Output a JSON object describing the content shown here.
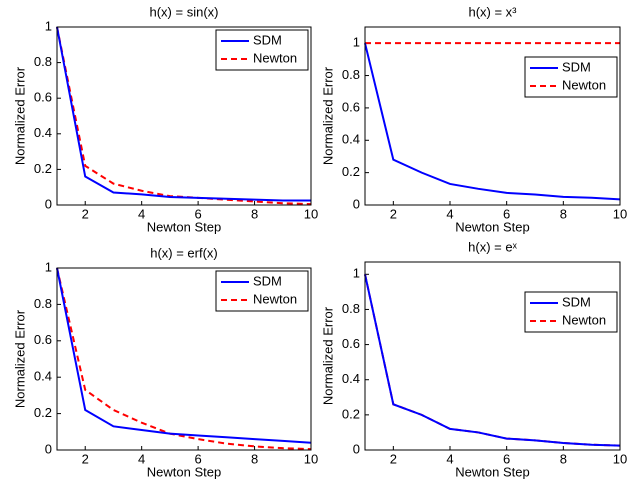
{
  "chart_data": [
    {
      "type": "line",
      "title": "h(x) = sin(x)",
      "x_label": "Newton Step",
      "y_label": "Normalized Error",
      "x": [
        1,
        2,
        3,
        4,
        5,
        6,
        7,
        8,
        9,
        10
      ],
      "xlim": [
        1,
        10
      ],
      "xticks": [
        2,
        4,
        6,
        8,
        10
      ],
      "ylim": [
        0,
        1
      ],
      "yticks": [
        0,
        0.2,
        0.4,
        0.6,
        0.8,
        1
      ],
      "legend": "upper right",
      "series": [
        {
          "name": "SDM",
          "color": "#0000ff",
          "linestyle": "solid",
          "values": [
            1,
            0.16,
            0.07,
            0.06,
            0.045,
            0.04,
            0.035,
            0.03,
            0.025,
            0.025
          ]
        },
        {
          "name": "Newton",
          "color": "#ff0000",
          "linestyle": "dashed",
          "values": [
            1,
            0.22,
            0.12,
            0.08,
            0.05,
            0.04,
            0.03,
            0.02,
            0.01,
            0.005
          ]
        }
      ]
    },
    {
      "type": "line",
      "title": "h(x) = x³",
      "x_label": "Newton Step",
      "y_label": "Normalized Error",
      "x": [
        1,
        2,
        3,
        4,
        5,
        6,
        7,
        8,
        9,
        10
      ],
      "xlim": [
        1,
        10
      ],
      "xticks": [
        2,
        4,
        6,
        8,
        10
      ],
      "ylim": [
        0,
        1.1
      ],
      "yticks": [
        0,
        0.2,
        0.4,
        0.6,
        0.8,
        1
      ],
      "legend": "upper right",
      "series": [
        {
          "name": "SDM",
          "color": "#0000ff",
          "linestyle": "solid",
          "values": [
            1,
            0.28,
            0.2,
            0.13,
            0.1,
            0.075,
            0.065,
            0.05,
            0.045,
            0.035
          ]
        },
        {
          "name": "Newton",
          "color": "#ff0000",
          "linestyle": "dashed",
          "values": [
            1,
            1,
            1,
            1,
            1,
            1,
            1,
            1,
            1,
            1
          ]
        }
      ]
    },
    {
      "type": "line",
      "title": "h(x) = erf(x)",
      "x_label": "Newton Step",
      "y_label": "Normalized Error",
      "x": [
        1,
        2,
        3,
        4,
        5,
        6,
        7,
        8,
        9,
        10
      ],
      "xlim": [
        1,
        10
      ],
      "xticks": [
        2,
        4,
        6,
        8,
        10
      ],
      "ylim": [
        0,
        1
      ],
      "yticks": [
        0,
        0.2,
        0.4,
        0.6,
        0.8,
        1
      ],
      "legend": "upper right",
      "series": [
        {
          "name": "SDM",
          "color": "#0000ff",
          "linestyle": "solid",
          "values": [
            1,
            0.22,
            0.13,
            0.11,
            0.09,
            0.08,
            0.07,
            0.06,
            0.05,
            0.04
          ]
        },
        {
          "name": "Newton",
          "color": "#ff0000",
          "linestyle": "dashed",
          "values": [
            1,
            0.33,
            0.22,
            0.15,
            0.09,
            0.06,
            0.035,
            0.02,
            0.01,
            0.005
          ]
        }
      ]
    },
    {
      "type": "line",
      "title": "h(x) = eˣ",
      "x_label": "Newton Step",
      "y_label": "Normalized Error",
      "x": [
        1,
        2,
        3,
        4,
        5,
        6,
        7,
        8,
        9,
        10
      ],
      "xlim": [
        1,
        10
      ],
      "xticks": [
        2,
        4,
        6,
        8,
        10
      ],
      "ylim": [
        0,
        1.07
      ],
      "yticks": [
        0,
        0.2,
        0.4,
        0.6,
        0.8,
        1
      ],
      "legend": "upper right",
      "series": [
        {
          "name": "SDM",
          "color": "#0000ff",
          "linestyle": "solid",
          "values": [
            1,
            0.26,
            0.2,
            0.12,
            0.1,
            0.065,
            0.055,
            0.04,
            0.03,
            0.025
          ]
        },
        {
          "name": "Newton",
          "color": "#ff0000",
          "linestyle": "dashed",
          "values": [
            1,
            0.26,
            0.2,
            0.12,
            0.1,
            0.065,
            0.055,
            0.04,
            0.03,
            0.025
          ]
        }
      ]
    }
  ]
}
